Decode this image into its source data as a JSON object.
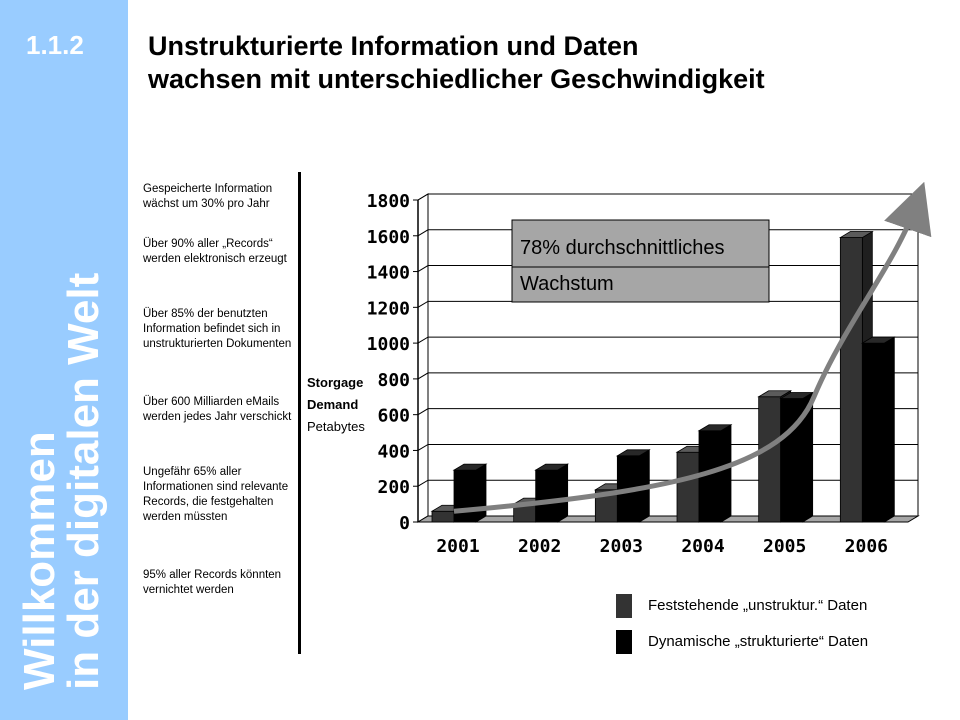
{
  "slide": {
    "number": "1.1.2",
    "title_lines": [
      "Unstrukturierte Information und Daten",
      "wachsen mit unterschiedlicher  Geschwindigkeit"
    ],
    "sidebar_title_lines": [
      "Willkommen",
      "in der digitalen Welt"
    ],
    "facts": [
      "Gespeicherte Information wächst um 30% pro Jahr",
      "Über 90% aller „Records“ werden elektronisch erzeugt",
      "Über 85% der benutzten Information befindet sich in unstrukturierten Dokumenten",
      "Über 600 Milliarden eMails werden jedes Jahr verschickt",
      "Ungefähr 65% aller Informationen sind relevante Records, die festgehalten werden müssten",
      "95% aller Records könnten vernichtet werden"
    ],
    "ylabel_lines": [
      "Storgage",
      "Demand",
      "Petabytes"
    ],
    "colors": {
      "sidebar": "#99ccff",
      "unstructured": "#333333",
      "structured": "#000000",
      "arrow": "#808080",
      "callout": "#a6a6a6"
    }
  },
  "chart_data": {
    "type": "bar",
    "categories": [
      "2001",
      "2002",
      "2003",
      "2004",
      "2005",
      "2006"
    ],
    "series": [
      {
        "name": "Feststehende „unstruktur.“ Daten",
        "values": [
          60,
          100,
          180,
          390,
          700,
          1590
        ]
      },
      {
        "name": "Dynamische „strukturierte“ Daten",
        "values": [
          290,
          290,
          370,
          510,
          690,
          1000
        ]
      }
    ],
    "ylim": [
      0,
      1800
    ],
    "yticks": [
      0,
      200,
      400,
      600,
      800,
      1000,
      1200,
      1400,
      1600,
      1800
    ],
    "grid": true,
    "legend_position": "bottom-right",
    "annotation": {
      "lines": [
        "78% durchschnittliches",
        "Wachstum"
      ]
    }
  }
}
